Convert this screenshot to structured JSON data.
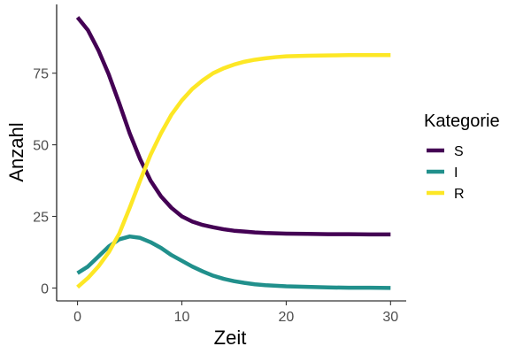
{
  "chart_data": {
    "type": "line",
    "xlabel": "Zeit",
    "ylabel": "Anzahl",
    "xlim": [
      -2,
      31.5
    ],
    "ylim": [
      -4.5,
      99
    ],
    "x_ticks": [
      0,
      10,
      20,
      30
    ],
    "y_ticks": [
      0,
      25,
      50,
      75
    ],
    "grid": false,
    "legend": {
      "title": "Kategorie",
      "placement": "right"
    },
    "series": [
      {
        "name": "S",
        "color": "#440154",
        "x": [
          0,
          1,
          2,
          3,
          4,
          5,
          6,
          7,
          8,
          9,
          10,
          11,
          12,
          13,
          14,
          15,
          16,
          17,
          18,
          19,
          20,
          22,
          24,
          26,
          28,
          30
        ],
        "y": [
          94.5,
          90,
          83,
          74.5,
          64.5,
          54,
          45,
          37.5,
          32,
          28,
          25,
          23.2,
          22,
          21.2,
          20.5,
          20,
          19.7,
          19.4,
          19.2,
          19.1,
          19,
          18.9,
          18.8,
          18.8,
          18.7,
          18.7
        ]
      },
      {
        "name": "I",
        "color": "#21908C",
        "x": [
          0,
          1,
          2,
          3,
          4,
          5,
          6,
          7,
          8,
          9,
          10,
          11,
          12,
          13,
          14,
          15,
          16,
          17,
          18,
          20,
          22,
          24,
          26,
          28,
          30
        ],
        "y": [
          5.2,
          7.5,
          11,
          14.5,
          17,
          18,
          17.5,
          16,
          14,
          11.5,
          9.5,
          7.5,
          5.8,
          4.3,
          3.2,
          2.4,
          1.8,
          1.3,
          1,
          0.6,
          0.4,
          0.2,
          0.1,
          0.1,
          0
        ]
      },
      {
        "name": "R",
        "color": "#FDE725",
        "x": [
          0,
          1,
          2,
          3,
          4,
          5,
          6,
          7,
          8,
          9,
          10,
          11,
          12,
          13,
          14,
          15,
          16,
          17,
          18,
          19,
          20,
          22,
          24,
          26,
          28,
          30
        ],
        "y": [
          0.3,
          3.5,
          7.5,
          12.5,
          19,
          28,
          37.5,
          46.5,
          54,
          60.5,
          65.5,
          69.5,
          72.5,
          75,
          76.7,
          78,
          79,
          79.7,
          80.2,
          80.6,
          80.9,
          81.1,
          81.2,
          81.3,
          81.3,
          81.3
        ]
      }
    ]
  }
}
